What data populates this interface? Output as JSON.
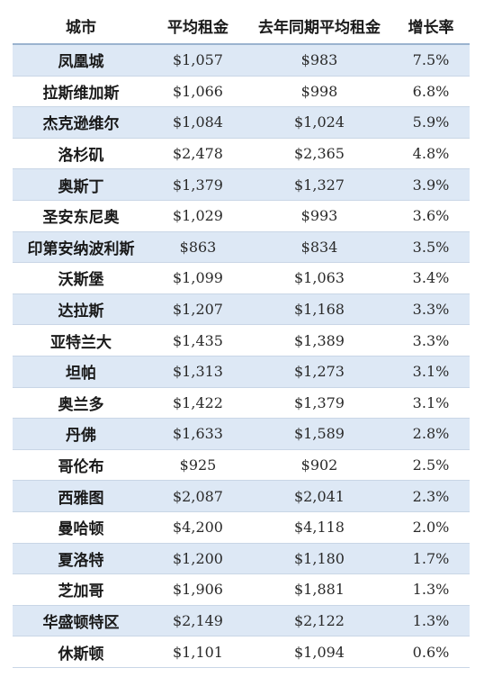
{
  "table": {
    "headers": {
      "city": "城市",
      "avg_rent": "平均租金",
      "last_year": "去年同期平均租金",
      "growth": "增长率"
    },
    "rows": [
      {
        "city": "凤凰城",
        "avg": "$1,057",
        "last": "$983",
        "growth": "7.5%"
      },
      {
        "city": "拉斯维加斯",
        "avg": "$1,066",
        "last": "$998",
        "growth": "6.8%"
      },
      {
        "city": "杰克逊维尔",
        "avg": "$1,084",
        "last": "$1,024",
        "growth": "5.9%"
      },
      {
        "city": "洛杉矶",
        "avg": "$2,478",
        "last": "$2,365",
        "growth": "4.8%"
      },
      {
        "city": "奥斯丁",
        "avg": "$1,379",
        "last": "$1,327",
        "growth": "3.9%"
      },
      {
        "city": "圣安东尼奥",
        "avg": "$1,029",
        "last": "$993",
        "growth": "3.6%"
      },
      {
        "city": "印第安纳波利斯",
        "avg": "$863",
        "last": "$834",
        "growth": "3.5%"
      },
      {
        "city": "沃斯堡",
        "avg": "$1,099",
        "last": "$1,063",
        "growth": "3.4%"
      },
      {
        "city": "达拉斯",
        "avg": "$1,207",
        "last": "$1,168",
        "growth": "3.3%"
      },
      {
        "city": "亚特兰大",
        "avg": "$1,435",
        "last": "$1,389",
        "growth": "3.3%"
      },
      {
        "city": "坦帕",
        "avg": "$1,313",
        "last": "$1,273",
        "growth": "3.1%"
      },
      {
        "city": "奥兰多",
        "avg": "$1,422",
        "last": "$1,379",
        "growth": "3.1%"
      },
      {
        "city": "丹佛",
        "avg": "$1,633",
        "last": "$1,589",
        "growth": "2.8%"
      },
      {
        "city": "哥伦布",
        "avg": "$925",
        "last": "$902",
        "growth": "2.5%"
      },
      {
        "city": "西雅图",
        "avg": "$2,087",
        "last": "$2,041",
        "growth": "2.3%"
      },
      {
        "city": "曼哈顿",
        "avg": "$4,200",
        "last": "$4,118",
        "growth": "2.0%"
      },
      {
        "city": "夏洛特",
        "avg": "$1,200",
        "last": "$1,180",
        "growth": "1.7%"
      },
      {
        "city": "芝加哥",
        "avg": "$1,906",
        "last": "$1,881",
        "growth": "1.3%"
      },
      {
        "city": "华盛顿特区",
        "avg": "$2,149",
        "last": "$2,122",
        "growth": "1.3%"
      },
      {
        "city": "休斯顿",
        "avg": "$1,101",
        "last": "$1,094",
        "growth": "0.6%"
      }
    ]
  },
  "colors": {
    "stripe": "#dde8f5",
    "rule": "#c9d6e6"
  }
}
